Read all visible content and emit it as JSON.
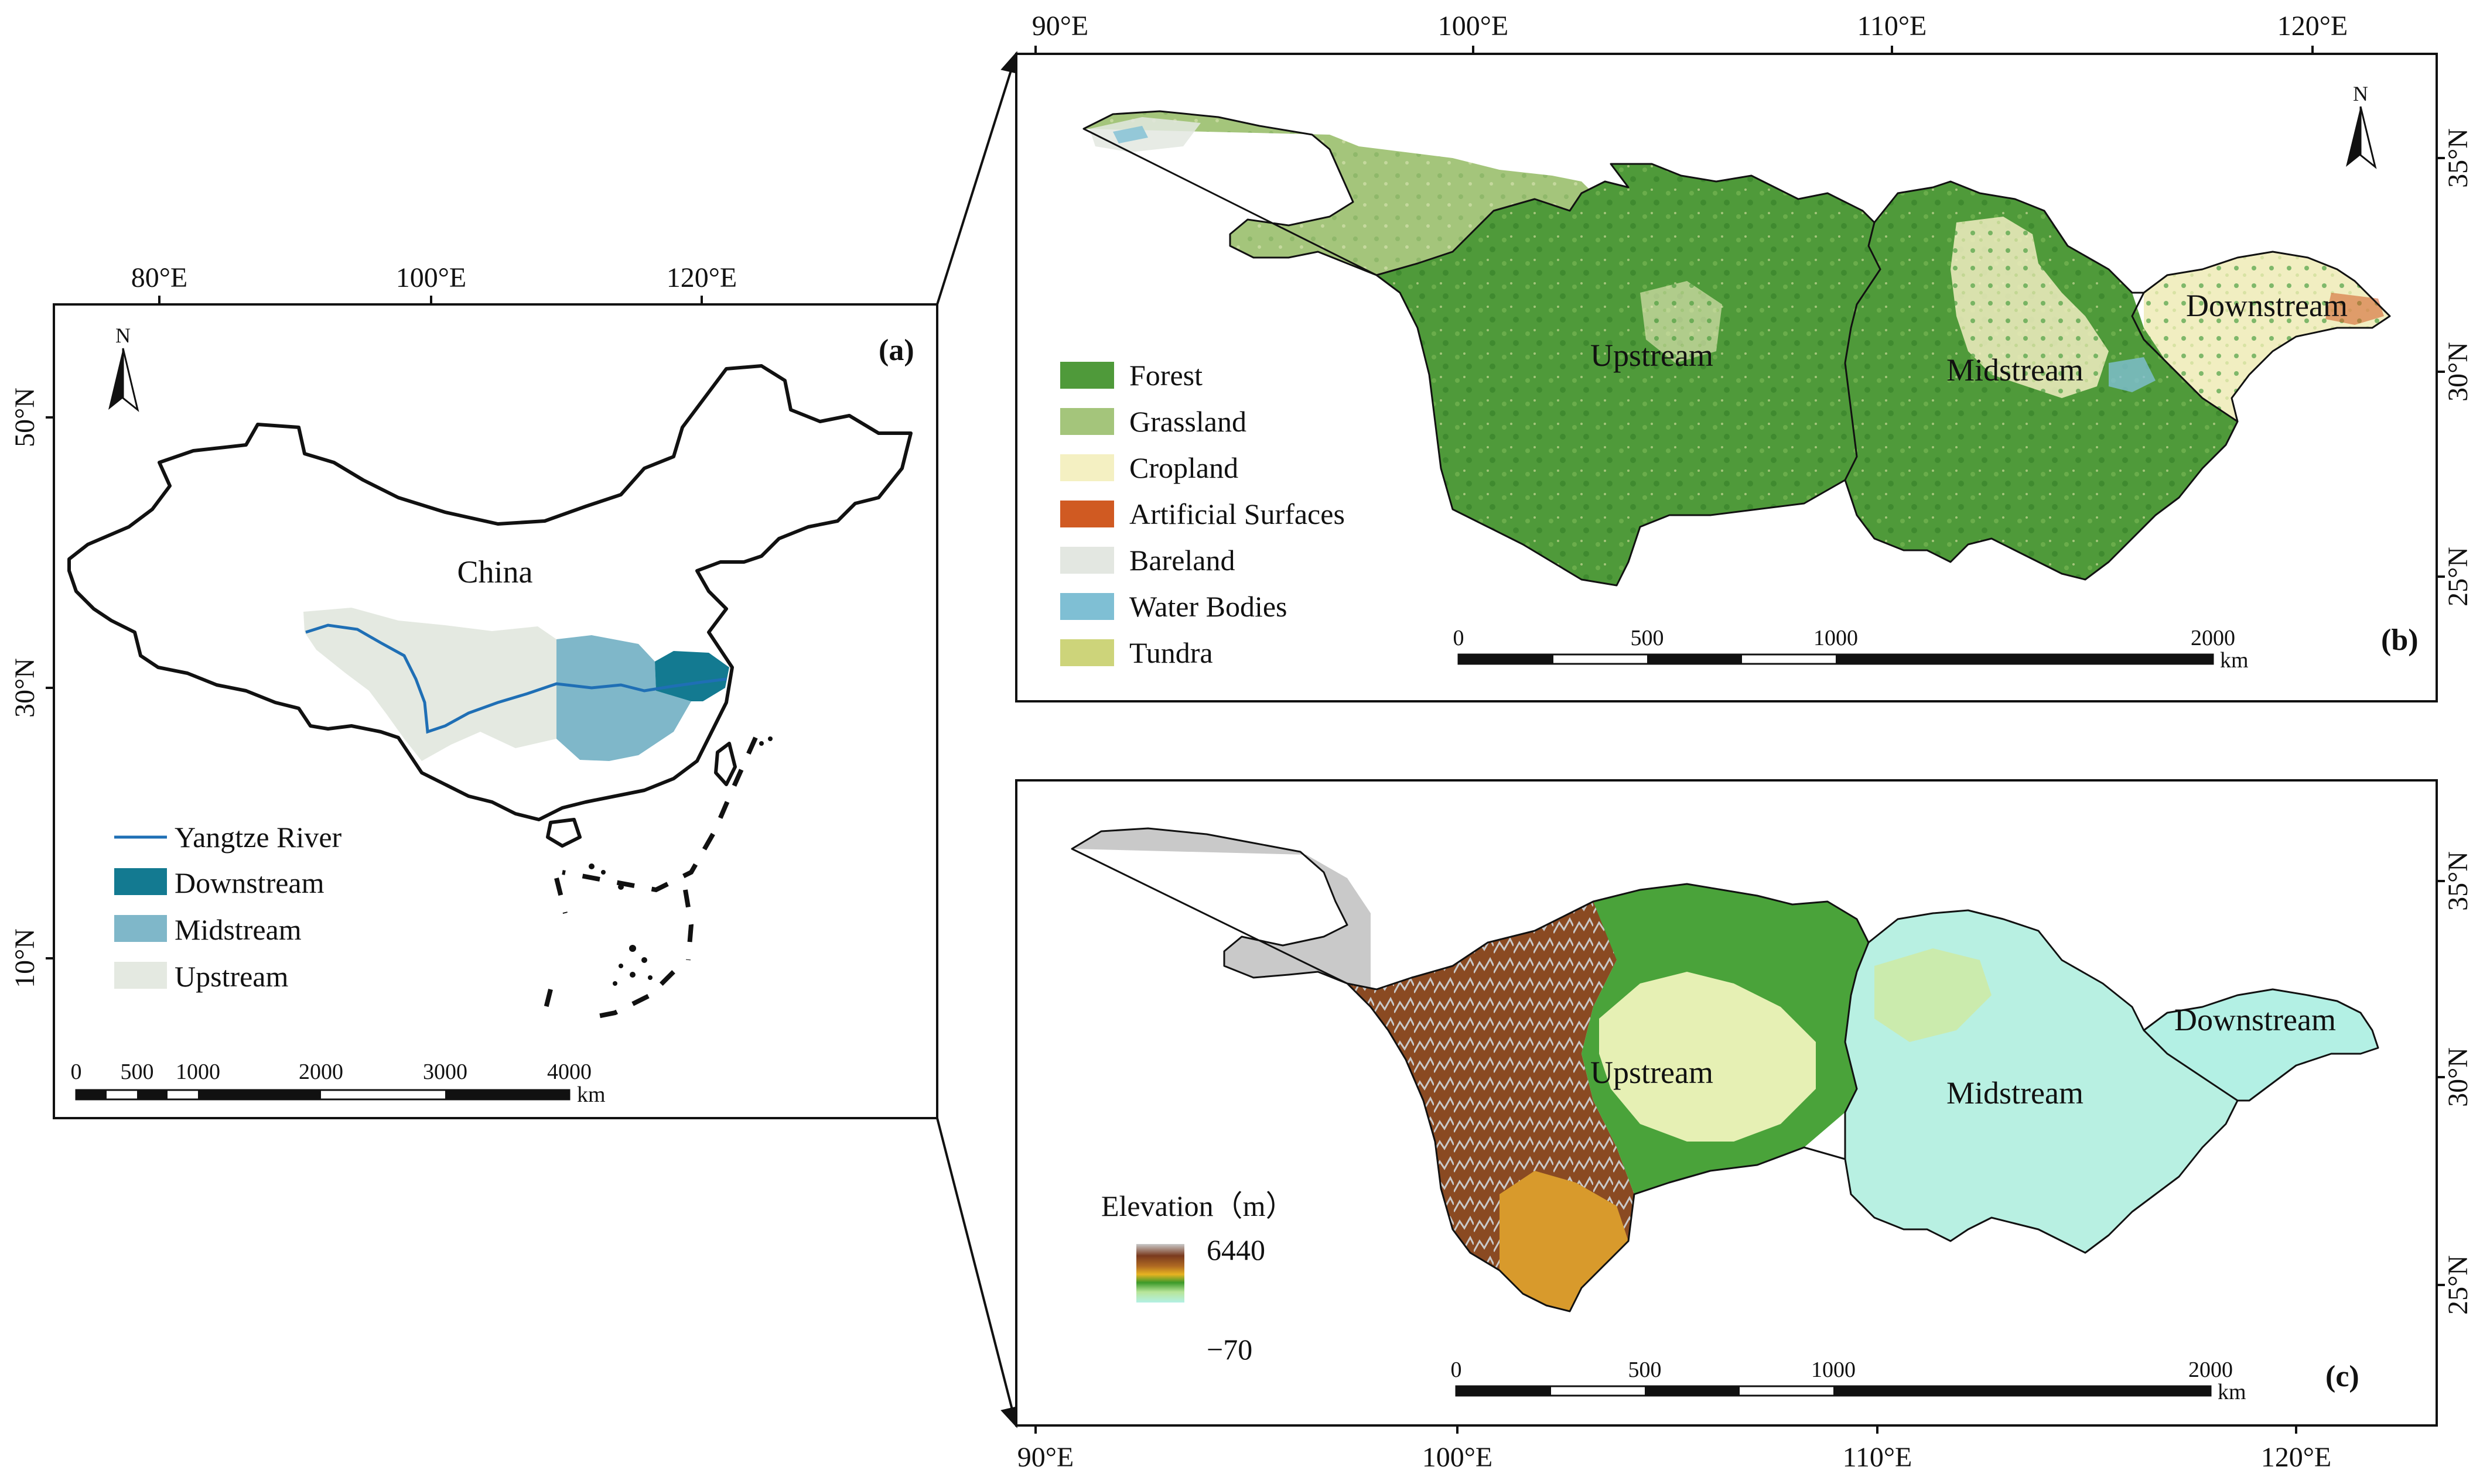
{
  "panel_a": {
    "id": "(a)",
    "top_ticks": [
      "80°E",
      "100°E",
      "120°E"
    ],
    "left_ticks": [
      "50°N",
      "30°N",
      "10°N"
    ],
    "country_label": "China",
    "north": "N",
    "legend": [
      {
        "label": "Yangtze River",
        "symbol": "line",
        "color": "#1f6fb5"
      },
      {
        "label": "Downstream",
        "symbol": "box",
        "color": "#137a91"
      },
      {
        "label": "Midstream",
        "symbol": "box",
        "color": "#7fb7c9"
      },
      {
        "label": "Upstream",
        "symbol": "box",
        "color": "#e4e9e1"
      }
    ],
    "scale_labels": [
      "0",
      "500",
      "1000",
      "2000",
      "3000",
      "4000"
    ],
    "scale_unit": "km"
  },
  "panel_b": {
    "id": "(b)",
    "top_ticks": [
      "90°E",
      "100°E",
      "110°E",
      "120°E"
    ],
    "right_ticks": [
      "35°N",
      "30°N",
      "25°N"
    ],
    "north": "N",
    "region_labels": [
      "Upstream",
      "Midstream",
      "Downstream"
    ],
    "legend": [
      {
        "label": "Forest",
        "color": "#4f9a3a"
      },
      {
        "label": "Grassland",
        "color": "#a4c57b"
      },
      {
        "label": "Cropland",
        "color": "#f4f0c2"
      },
      {
        "label": "Artificial Surfaces",
        "color": "#d05a22"
      },
      {
        "label": "Bareland",
        "color": "#e3e7e1"
      },
      {
        "label": "Water Bodies",
        "color": "#7fbfd4"
      },
      {
        "label": "Tundra",
        "color": "#cdd47a"
      }
    ],
    "scale_labels": [
      "0",
      "500",
      "1000",
      "2000"
    ],
    "scale_unit": "km"
  },
  "panel_c": {
    "id": "(c)",
    "bottom_ticks": [
      "90°E",
      "100°E",
      "110°E",
      "120°E"
    ],
    "right_ticks": [
      "35°N",
      "30°N",
      "25°N"
    ],
    "region_labels": [
      "Upstream",
      "Midstream",
      "Downstream"
    ],
    "elevation_title": "Elevation（m）",
    "elevation_max": "6440",
    "elevation_min": "−70",
    "ramp_colors": [
      "#bdbdbd",
      "#7a3a1e",
      "#b06a22",
      "#e7b321",
      "#3c9a2a",
      "#b8e59a",
      "#b3f0e4"
    ],
    "scale_labels": [
      "0",
      "500",
      "1000",
      "2000"
    ],
    "scale_unit": "km"
  },
  "colors": {
    "upstream_fill": "#e4e9e1",
    "midstream_fill": "#7fb7c9",
    "downstream_fill": "#137a91",
    "river": "#1f6fb5"
  }
}
